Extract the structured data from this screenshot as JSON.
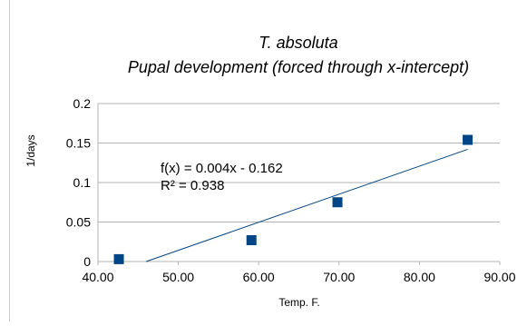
{
  "chart_data": {
    "type": "scatter",
    "title": "T. absoluta",
    "subtitle": "Pupal development (forced through x-intercept)",
    "xlabel": "Temp. F.",
    "ylabel": "1/days",
    "xlim": [
      40,
      90
    ],
    "ylim": [
      0,
      0.2
    ],
    "xticks": [
      "40.00",
      "50.00",
      "60.00",
      "70.00",
      "80.00",
      "90.00"
    ],
    "yticks": [
      "0",
      "0.05",
      "0.1",
      "0.15",
      "0.2"
    ],
    "grid": "horizontal",
    "points": [
      {
        "x": 42.6,
        "y": 0.003
      },
      {
        "x": 59.1,
        "y": 0.027
      },
      {
        "x": 69.8,
        "y": 0.075
      },
      {
        "x": 86.0,
        "y": 0.154
      }
    ],
    "trendline": {
      "equation": "f(x) = 0.004x - 0.162",
      "r_squared": "R² = 0.938",
      "x_start": 46.0,
      "x_end": 86.0,
      "y_end": 0.142
    },
    "colors": {
      "marker": "#004586",
      "trendline": "#004586",
      "grid": "#b3b3b3",
      "text": "#000000"
    }
  }
}
